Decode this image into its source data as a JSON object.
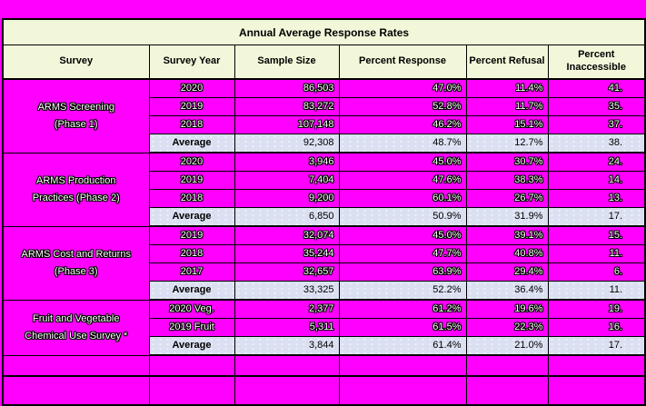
{
  "colors": {
    "page_background": "#ff00ff",
    "header_background": "#f3f7da",
    "average_row_background": "#dae0f1",
    "border": "#000000",
    "data_text": "#ffffff",
    "data_text_outline": "#000000"
  },
  "title": "Annual Average Response Rates",
  "columns": [
    "Survey",
    "Survey Year",
    "Sample Size",
    "Percent Response",
    "Percent Refusal",
    "Percent Inaccessible"
  ],
  "groups": [
    {
      "survey": "ARMS Screening\n(Phase 1)",
      "rows": [
        {
          "year": "2020",
          "sample": "86,503",
          "response": "47.0%",
          "refusal": "11.4%",
          "inaccessible": "41."
        },
        {
          "year": "2019",
          "sample": "83,272",
          "response": "52.8%",
          "refusal": "11.7%",
          "inaccessible": "35."
        },
        {
          "year": "2018",
          "sample": "107,148",
          "response": "46.2%",
          "refusal": "15.1%",
          "inaccessible": "37."
        }
      ],
      "average": {
        "label": "Average",
        "sample": "92,308",
        "response": "48.7%",
        "refusal": "12.7%",
        "inaccessible": "38."
      }
    },
    {
      "survey": "ARMS Production\nPractices (Phase 2)",
      "rows": [
        {
          "year": "2020",
          "sample": "3,946",
          "response": "45.0%",
          "refusal": "30.7%",
          "inaccessible": "24."
        },
        {
          "year": "2019",
          "sample": "7,404",
          "response": "47.6%",
          "refusal": "38.3%",
          "inaccessible": "14."
        },
        {
          "year": "2018",
          "sample": "9,200",
          "response": "60.1%",
          "refusal": "26.7%",
          "inaccessible": "13."
        }
      ],
      "average": {
        "label": "Average",
        "sample": "6,850",
        "response": "50.9%",
        "refusal": "31.9%",
        "inaccessible": "17."
      }
    },
    {
      "survey": "ARMS Cost and Returns\n(Phase 3)",
      "rows": [
        {
          "year": "2019",
          "sample": "32,074",
          "response": "45.0%",
          "refusal": "39.1%",
          "inaccessible": "15."
        },
        {
          "year": "2018",
          "sample": "35,244",
          "response": "47.7%",
          "refusal": "40.8%",
          "inaccessible": "11."
        },
        {
          "year": "2017",
          "sample": "32,657",
          "response": "63.9%",
          "refusal": "29.4%",
          "inaccessible": "6."
        }
      ],
      "average": {
        "label": "Average",
        "sample": "33,325",
        "response": "52.2%",
        "refusal": "36.4%",
        "inaccessible": "11."
      }
    },
    {
      "survey": "Fruit and Vegetable\nChemical Use Survey *",
      "rows": [
        {
          "year": "2020 Veg.",
          "sample": "2,377",
          "response": "61.2%",
          "refusal": "19.6%",
          "inaccessible": "19."
        },
        {
          "year": "2019 Fruit",
          "sample": "5,311",
          "response": "61.5%",
          "refusal": "22.3%",
          "inaccessible": "16."
        }
      ],
      "average": {
        "label": "Average",
        "sample": "3,844",
        "response": "61.4%",
        "refusal": "21.0%",
        "inaccessible": "17."
      }
    }
  ],
  "empty_rows": 2
}
